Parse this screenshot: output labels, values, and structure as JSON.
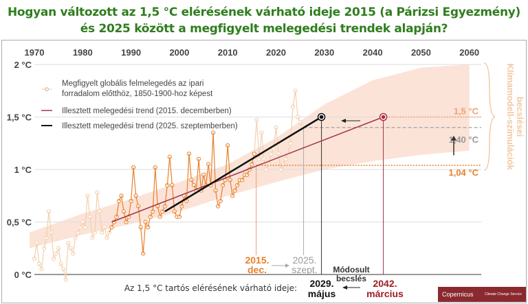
{
  "title_line1": "Hogyan változott az 1,5 °C elérésének várható ideje 2015 (a Párizsi Egyezmény)",
  "title_line2": "és 2025 között a megfigyelt melegedési trendek alapján?",
  "chart_data": {
    "type": "line",
    "xlim": [
      1967,
      2062
    ],
    "ylim": [
      -0.1,
      2.0
    ],
    "x_ticks": [
      "1970",
      "1980",
      "1990",
      "2000",
      "2010",
      "2020",
      "2030",
      "2040",
      "2050",
      "2060"
    ],
    "y_ticks": [
      {
        "v": 0,
        "label": "0 °C"
      },
      {
        "v": 0.5,
        "label": "0,5 °C"
      },
      {
        "v": 1,
        "label": "1 °C"
      },
      {
        "v": 1.5,
        "label": "1,5 °C"
      },
      {
        "v": 2,
        "label": "2 °C"
      }
    ],
    "grid": true,
    "legend_placement": "top-left",
    "colors": {
      "observed": "#e8802a",
      "observed_faded": "#f3cfae",
      "trend2015": "#a0334a",
      "trend2025": "#111111",
      "band": "#fbe3d8",
      "label_orange": "#e8802a",
      "label_grey": "#999999",
      "label_red": "#9e1b22",
      "klima": "#f2c8a4"
    },
    "series": [
      {
        "name": "Megfigyelt globális felmelegedés az ipari forradalom előtthöz, 1850-1900-hoz képest",
        "key": "observed",
        "x": [
          1970,
          1970.5,
          1971,
          1971.5,
          1972,
          1972.5,
          1973,
          1973.5,
          1974,
          1974.5,
          1975,
          1975.5,
          1976,
          1976.5,
          1977,
          1977.5,
          1978,
          1978.5,
          1979,
          1979.5,
          1980,
          1980.5,
          1981,
          1981.5,
          1982,
          1982.5,
          1983,
          1983.5,
          1984,
          1984.5,
          1985,
          1985.5,
          1986,
          1986.5,
          1987,
          1987.5,
          1988,
          1988.5,
          1989,
          1989.5,
          1990,
          1990.5,
          1991,
          1991.5,
          1992,
          1992.5,
          1993,
          1993.5,
          1994,
          1994.5,
          1995,
          1995.5,
          1996,
          1996.5,
          1997,
          1997.5,
          1998,
          1998.5,
          1999,
          1999.5,
          2000,
          2000.5,
          2001,
          2001.5,
          2002,
          2002.5,
          2003,
          2003.5,
          2004,
          2004.5,
          2005,
          2005.5,
          2006,
          2006.5,
          2007,
          2007.5,
          2008,
          2008.5,
          2009,
          2009.5,
          2010,
          2010.5,
          2011,
          2011.5,
          2012,
          2012.5,
          2013,
          2013.5,
          2014,
          2014.5,
          2015,
          2015.5,
          2016,
          2016.5,
          2017,
          2017.5,
          2018,
          2018.5,
          2019,
          2019.5,
          2020,
          2020.5,
          2021,
          2021.5,
          2022,
          2022.5,
          2023,
          2023.5,
          2024,
          2024.5,
          2025,
          2025.5
        ],
        "y": [
          0.15,
          0.3,
          0.1,
          0.05,
          0.25,
          0.35,
          0.6,
          0.4,
          0.15,
          0.2,
          0.25,
          0.1,
          0.05,
          -0.05,
          0.3,
          0.25,
          0.2,
          0.35,
          0.4,
          0.45,
          0.5,
          0.45,
          0.75,
          0.55,
          0.35,
          0.4,
          0.78,
          0.6,
          0.4,
          0.45,
          0.35,
          0.4,
          0.45,
          0.5,
          0.55,
          0.7,
          0.75,
          0.6,
          0.5,
          0.55,
          0.7,
          1.02,
          0.75,
          0.65,
          0.45,
          0.2,
          0.5,
          0.45,
          0.55,
          0.6,
          1.02,
          0.65,
          0.55,
          0.6,
          0.65,
          0.85,
          1.12,
          0.85,
          0.6,
          0.55,
          0.55,
          0.65,
          0.75,
          0.7,
          1.15,
          0.9,
          0.85,
          0.8,
          1.1,
          0.8,
          0.95,
          0.85,
          1.05,
          0.85,
          1.35,
          0.8,
          0.65,
          0.7,
          0.85,
          0.9,
          1.23,
          0.9,
          0.75,
          0.8,
          0.85,
          0.9,
          0.9,
          0.95,
          0.95,
          1.0,
          1.05,
          1.15,
          1.47,
          1.1,
          1.35,
          1.1,
          1.0,
          1.05,
          1.15,
          1.2,
          1.4,
          1.15,
          1.0,
          1.05,
          1.1,
          1.15,
          1.25,
          1.6,
          1.75,
          1.5,
          1.45,
          1.4
        ]
      },
      {
        "name": "Illesztett melegedési trend (2015. decemberben)",
        "key": "trend2015",
        "x": [
          1986,
          2042.2
        ],
        "y": [
          0.5,
          1.5
        ]
      },
      {
        "name": "Illesztett melegedési trend (2025. szeptemberben)",
        "key": "trend2025",
        "x": [
          1997,
          2029.4
        ],
        "y": [
          0.6,
          1.5
        ]
      }
    ],
    "band": {
      "x": [
        1969,
        1980,
        1990,
        2000,
        2010,
        2020,
        2030,
        2040,
        2050,
        2060
      ],
      "lower": [
        0.25,
        0.38,
        0.48,
        0.6,
        0.75,
        0.88,
        1.0,
        1.08,
        1.14,
        1.18
      ],
      "upper": [
        0.4,
        0.58,
        0.72,
        0.88,
        1.05,
        1.3,
        1.62,
        1.85,
        1.97,
        2.0
      ]
    },
    "hlines": [
      {
        "y": 1.5,
        "label": "1,5 °C"
      },
      {
        "y": 1.4,
        "label": "1,40 °C"
      },
      {
        "y": 1.04,
        "label": "1,04 °C"
      }
    ],
    "annotations": {
      "klima_label1": "Klímamodell-szimulációk",
      "klima_label2": "becslései",
      "dec2015_a": "2015.",
      "dec2015_b": "dec.",
      "sep2025_a": "2025.",
      "sep2025_b": "szept.",
      "modified_a": "Módosult",
      "modified_b": "becslés",
      "may2029_a": "2029.",
      "may2029_b": "május",
      "mar2042_a": "2042.",
      "mar2042_b": "március",
      "bottom_label": "Az 1,5 °C tartós elérésének várható ideje:"
    }
  },
  "logo": {
    "left": "Copernicus",
    "right": "Climate Change Service"
  }
}
